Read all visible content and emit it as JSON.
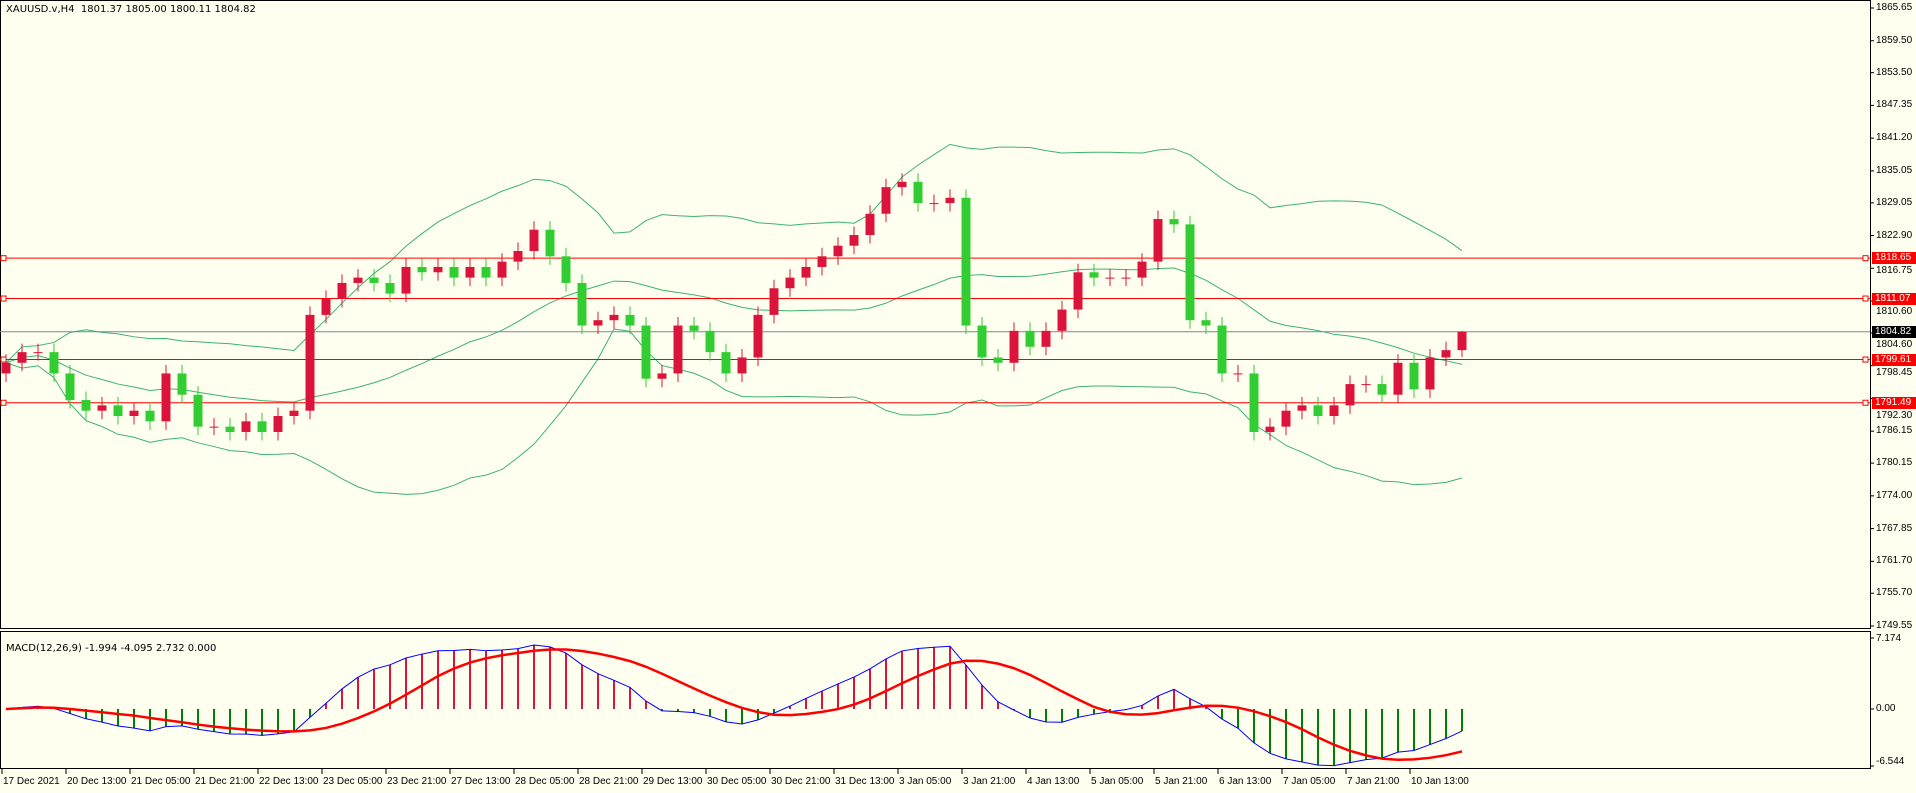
{
  "header": {
    "symbol": "XAUUSD.v,H4",
    "ohlc": "1801.37 1805.00 1800.11 1804.82"
  },
  "macd": {
    "label": "MACD(12,26,9) -1.994 -4.095 2.732 0.000",
    "axis_ticks": [
      "7.174",
      "0.00",
      "-6.544"
    ],
    "params": [
      12,
      26,
      9
    ]
  },
  "colors": {
    "background": "#fffff0",
    "bull_candle": "#dc143c",
    "bear_candle": "#32cd32",
    "bollinger": "#3cb371",
    "level_line": "#ff0000",
    "bid_line": "#778899",
    "macd_main": "#0000ff",
    "macd_signal": "#ff0000"
  },
  "price_axis": {
    "ticks": [
      "1865.65",
      "1859.50",
      "1853.50",
      "1847.35",
      "1841.20",
      "1835.05",
      "1829.05",
      "1822.90",
      "1816.75",
      "1810.60",
      "1804.60",
      "1798.45",
      "1792.30",
      "1786.15",
      "1780.15",
      "1774.00",
      "1767.85",
      "1761.70",
      "1755.70",
      "1749.55"
    ],
    "range": [
      1749.55,
      1865.65
    ]
  },
  "levels": [
    {
      "price": "1818.65"
    },
    {
      "price": "1811.07"
    },
    {
      "price": "1799.61"
    },
    {
      "price": "1791.49"
    }
  ],
  "bid": "1804.82",
  "time_axis": [
    "17 Dec 2021",
    "20 Dec 13:00",
    "21 Dec 05:00",
    "21 Dec 21:00",
    "22 Dec 13:00",
    "23 Dec 05:00",
    "23 Dec 21:00",
    "27 Dec 13:00",
    "28 Dec 05:00",
    "28 Dec 21:00",
    "29 Dec 13:00",
    "30 Dec 05:00",
    "30 Dec 21:00",
    "31 Dec 13:00",
    "3 Jan 05:00",
    "3 Jan 21:00",
    "4 Jan 13:00",
    "5 Jan 05:00",
    "5 Jan 21:00",
    "6 Jan 13:00",
    "7 Jan 05:00",
    "7 Jan 21:00",
    "10 Jan 13:00"
  ],
  "chart_data": {
    "type": "candlestick",
    "timeframe": "H4",
    "first_open": 1797,
    "closes": [
      1799,
      1801,
      1801,
      1797,
      1792,
      1790,
      1791,
      1789,
      1790,
      1788,
      1797,
      1793,
      1787,
      1787,
      1786,
      1788,
      1786,
      1789,
      1790,
      1808,
      1811,
      1814,
      1815,
      1814,
      1812,
      1817,
      1816,
      1817,
      1815,
      1817,
      1815,
      1818,
      1820,
      1824,
      1819,
      1814,
      1806,
      1807,
      1808,
      1806,
      1796,
      1797,
      1806,
      1805,
      1801,
      1797,
      1800,
      1808,
      1813,
      1815,
      1817,
      1819,
      1821,
      1823,
      1827,
      1832,
      1833,
      1829,
      1829,
      1830,
      1806,
      1800,
      1799,
      1805,
      1802,
      1805,
      1809,
      1816,
      1815,
      1815,
      1815,
      1818,
      1826,
      1825,
      1807,
      1806,
      1797,
      1797,
      1786,
      1787,
      1790,
      1791,
      1789,
      1791,
      1795,
      1795,
      1793,
      1799,
      1794,
      1800,
      1801.37,
      1804.82
    ],
    "last_candle": {
      "open": 1801.37,
      "high": 1805.0,
      "low": 1800.11,
      "close": 1804.82
    },
    "indicators": [
      "Bollinger Bands (20,2)",
      "MACD(12,26,9)"
    ],
    "ylim": [
      1749.55,
      1865.65
    ],
    "macd_ylim": [
      -6.544,
      7.174
    ]
  }
}
